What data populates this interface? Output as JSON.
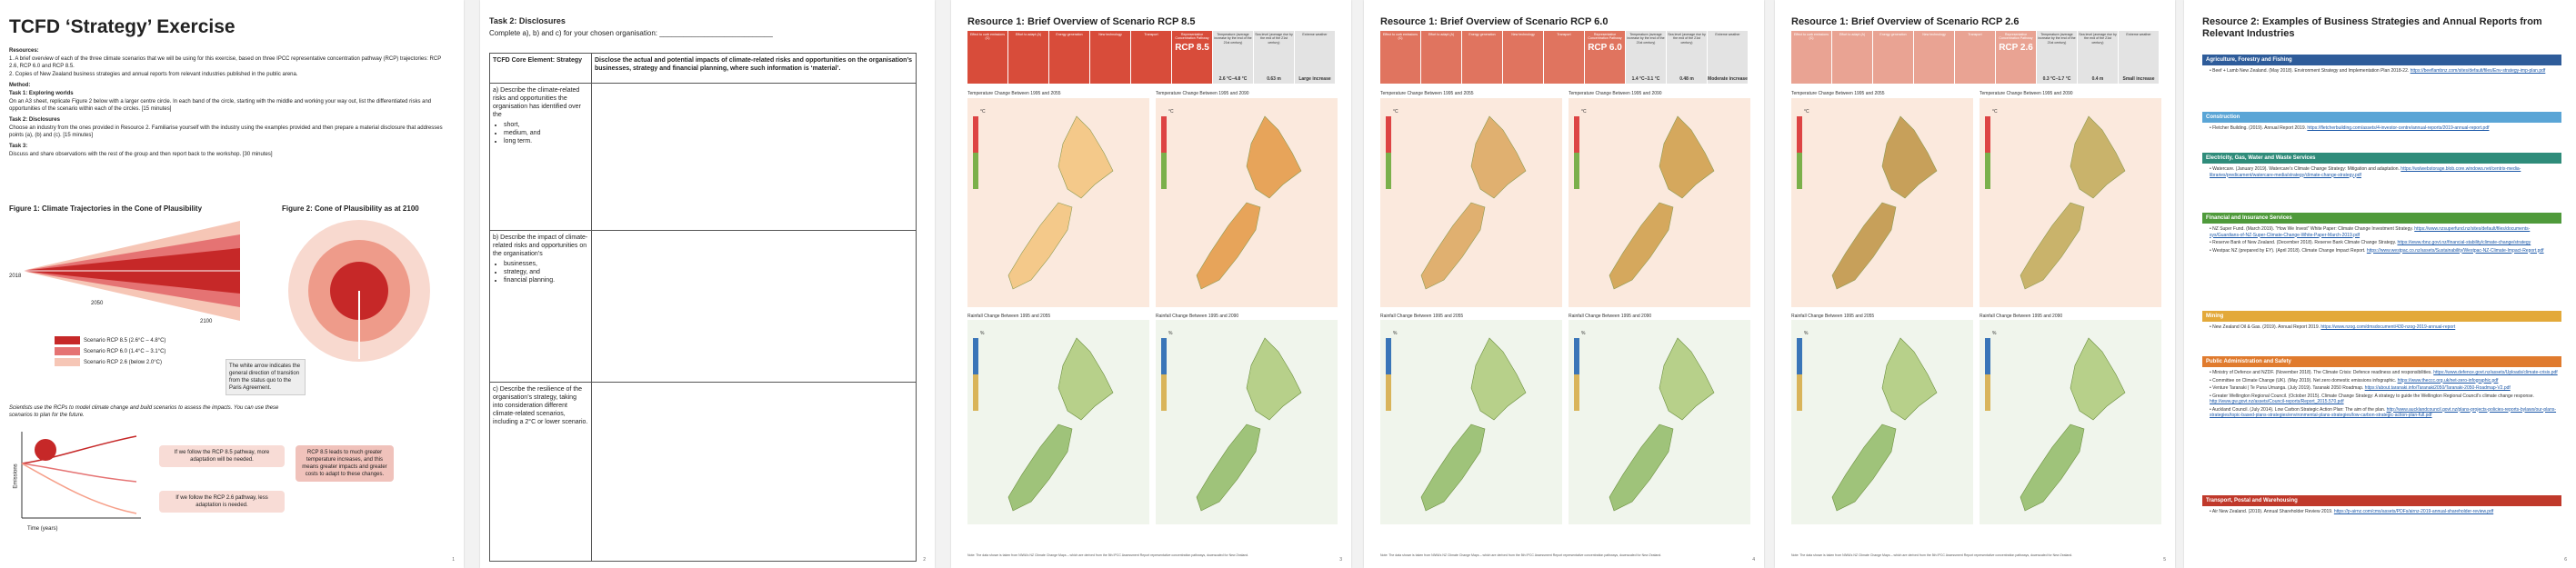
{
  "page1": {
    "title": "TCFD ‘Strategy’ Exercise",
    "resources_heading": "Resources:",
    "resources": [
      "1.  A brief overview of each of the three climate scenarios that we will be using for this exercise, based on three IPCC representative concentration pathway (RCP) trajectories: RCP 2.6, RCP 6.0 and RCP 8.5.",
      "2.  Copies of New Zealand business strategies and annual reports from relevant industries published in the public arena."
    ],
    "method_heading": "Method:",
    "task1_heading": "Task 1: Exploring worlds",
    "task1_text": "On an A3 sheet, replicate Figure 2 below with a larger centre circle. In each band of the circle, starting with the middle and working your way out, list the differentiated risks and opportunities of the scenario within each of the circles. [15 minutes]",
    "task2_heading": "Task 2: Disclosures",
    "task2_text": "Choose an industry from the ones provided in Resource 2. Familiarise yourself with the industry using the examples provided and then prepare a material disclosure that addresses points (a), (b) and (c). [15 minutes]",
    "task3_heading": "Task 3:",
    "task3_text": "Discuss and share observations with the rest of the group and then report back to the workshop. [30 minutes]",
    "fig1_title": "Figure 1: Climate Trajectories in the Cone of Plausibility",
    "fig2_title": "Figure 2: Cone of Plausibility as at 2100",
    "years": [
      "2018",
      "2050",
      "2100"
    ],
    "legend": [
      {
        "label": "Scenario   RCP 8.5   (2.6°C – 4.8°C)",
        "color": "#c62828"
      },
      {
        "label": "Scenario   RCP 6.0   (1.4°C – 3.1°C)",
        "color": "#e57373"
      },
      {
        "label": "Scenario   RCP 2.6   (below 2.0°C)",
        "color": "#f6c6b6"
      }
    ],
    "arrow_note": "The white arrow indicates the general direction of transition from the status quo to the Paris Agreement.",
    "bottom_note": "Scientists use the RCPs to model climate change and build scenarios to assess the impacts. You can use these scenarios to plan for the future.",
    "box_more": "If we follow the RCP 8.5 pathway, more adaptation will be needed.",
    "box_less": "If we follow the RCP 2.6 pathway, less adaptation is needed.",
    "box_right": "RCP 8.5 leads to much greater temperature increases, and this means greater impacts and greater costs to adapt to these changes.",
    "emissions_label": "Emissions",
    "years_axis": "Time (years)",
    "page_number": "1"
  },
  "page2": {
    "title": "Task 2: Disclosures",
    "subtitle": "Complete a), b) and c) for your chosen organisation: ____________________________",
    "col1": "TCFD Core Element: Strategy",
    "col2": "Disclose the actual and potential impacts of climate-related risks and opportunities on the organisation’s businesses, strategy and financial planning, where such information is ‘material’.",
    "row_a": "a) Describe the climate-related risks and opportunities the organisation has identified over the",
    "row_a_items": [
      "short,",
      "medium, and",
      "long term."
    ],
    "row_b": "b) Describe the impact of climate-related risks and opportunities on the organisation’s",
    "row_b_items": [
      "businesses,",
      "strategy, and",
      "financial planning."
    ],
    "row_c": "c) Describe the resilience of the organisation’s strategy, taking into consideration different climate-related scenarios, including a 2°C or lower scenario.",
    "page_number": "2"
  },
  "resources": [
    {
      "title": "Resource 1: Brief Overview of Scenario RCP 8.5",
      "rcp": "RCP 8.5",
      "accent": "#d84c3a",
      "temp": "2.6 °C–4.8 °C",
      "sea": "0.63 m",
      "weather": "Large increase",
      "temp_heading": "Temperature Change Between 1995 and 2055",
      "temp_heading2": "Temperature Change Between 1995 and 2090",
      "rain_heading": "Rainfall Change Between 1995 and 2055",
      "rain_heading2": "Rainfall Change Between 1995 and 2090",
      "page_number": "3"
    },
    {
      "title": "Resource 1: Brief Overview of Scenario RCP 6.0",
      "rcp": "RCP 6.0",
      "accent": "#e0745f",
      "temp": "1.4 °C–3.1 °C",
      "sea": "0.48 m",
      "weather": "Moderate increase",
      "temp_heading": "Temperature Change Between 1995 and 2055",
      "temp_heading2": "Temperature Change Between 1995 and 2090",
      "rain_heading": "Rainfall Change Between 1995 and 2055",
      "rain_heading2": "Rainfall Change Between 1995 and 2090",
      "page_number": "4"
    },
    {
      "title": "Resource 1: Brief Overview of Scenario RCP 2.6",
      "rcp": "RCP 2.6",
      "accent": "#e9a393",
      "temp": "0.3 °C–1.7 °C",
      "sea": "0.4 m",
      "weather": "Small increase",
      "temp_heading": "Temperature Change Between 1995 and 2055",
      "temp_heading2": "Temperature Change Between 1995 and 2090",
      "rain_heading": "Rainfall Change Between 1995 and 2055",
      "rain_heading2": "Rainfall Change Between 1995 and 2090",
      "page_number": "5"
    }
  ],
  "icon_columns": [
    "Effect to curb emissions (C)",
    "Effort to adapt (A)",
    "Energy generation",
    "New technology",
    "Transport",
    "Representative Concentration Pathway",
    "Temperature (average increase by the end of the 21st century)",
    "Sea level (average rise by the end of the 21st century)",
    "Extreme weather"
  ],
  "temp_unit": "°C",
  "rain_unit": "%",
  "temp_scale": [
    "4.0",
    "3.5",
    "3.0",
    "2.5",
    "2.0",
    "1.5",
    "1.0",
    "0.5"
  ],
  "rain_scale": [
    "20",
    "15",
    "10",
    "5",
    "0",
    "-5",
    "-10",
    "-15",
    "-20"
  ],
  "footnote": "Note: The data shown is taken from NIWA’s NZ Climate Change Maps – which are derived from the 5th IPCC Assessment Report representative concentration pathways, downscaled for New Zealand.",
  "page6": {
    "title": "Resource 2: Examples of Business Strategies and Annual Reports from Relevant Industries",
    "sections": [
      {
        "heading": "Agriculture, Forestry and Fishing",
        "color": "#2e5c9a",
        "items": [
          {
            "text": "Beef + Lamb New Zealand. (May 2018). Environment Strategy and Implementation Plan 2018-22.",
            "link": "https://beeflambnz.com/sites/default/files/Env-strategy-imp-plan.pdf"
          }
        ]
      },
      {
        "heading": "Construction",
        "color": "#5aa5d6",
        "items": [
          {
            "text": "Fletcher Building. (2019). Annual Report 2019.",
            "link": "https://fletcherbuilding.com/assets/4-investor-centre/annual-reports/2019-annual-report.pdf"
          }
        ]
      },
      {
        "heading": "Electricity, Gas, Water and Waste Services",
        "color": "#2f8c7a",
        "items": [
          {
            "text": "Watercare. (January 2019). Watercare’s Climate Change Strategy: Mitigation and adaptation.",
            "link": "https://wslwebstorage.blob.core.windows.net/centrix-media-libraries/predicament/watercare-media/strategy/climate-change-strategy.pdf"
          }
        ]
      },
      {
        "heading": "Financial and Insurance Services",
        "color": "#4f9a3b",
        "items": [
          {
            "text": "NZ Super Fund. (March 2019). “How We Invest” White Paper: Climate Change Investment Strategy.",
            "link": "https://www.nzsuperfund.nz/sites/default/files/documents-sys/Guardians-of-NZ-Super-Climate-Change-White-Paper-March-2019.pdf"
          },
          {
            "text": "Reserve Bank of New Zealand. (December 2018). Reserve Bank Climate Change Strategy.",
            "link": "https://www.rbnz.govt.nz/financial-stability/climate-change/strategy"
          },
          {
            "text": "Westpac NZ (prepared by EY). (April 2018). Climate Change Impact Report.",
            "link": "https://www.westpac.co.nz/assets/Sustainability/Westpac-NZ-Climate-Impact-Report.pdf"
          }
        ]
      },
      {
        "heading": "Mining",
        "color": "#e3a93a",
        "items": [
          {
            "text": "New Zealand Oil & Gas. (2019). Annual Report 2019.",
            "link": "https://www.nzog.com/dmsdocument/430-nzog-2019-annual-report"
          }
        ]
      },
      {
        "heading": "Public Administration and Safety",
        "color": "#e07b2e",
        "items": [
          {
            "text": "Ministry of Defence and NZDF. (November 2018). The Climate Crisis: Defence readiness and responsibilities.",
            "link": "https://www.defence.govt.nz/assets/Uploads/climate-crisis.pdf"
          },
          {
            "text": "Committee on Climate Change (UK). (May 2019). Net zero domestic emissions infographic.",
            "link": "https://www.theccc.org.uk/net-zero-infographic.pdf"
          },
          {
            "text": "Venture Taranaki | Te Puna Umanga. (July 2019). Taranaki 2050 Roadmap.",
            "link": "https://about.taranaki.info/Taranaki2050/Taranaki-2050-Roadmap-V2.pdf"
          },
          {
            "text": "Greater Wellington Regional Council. (October 2015). Climate Change Strategy: A strategy to guide the Wellington Regional Council’s climate change response.",
            "link": "http://www.gw.govt.nz/assets/Council-reports/Report_2015.570.pdf"
          },
          {
            "text": "Auckland Council. (July 2014). Low Carbon Strategic Action Plan: The aim of the plan.",
            "link": "http://www.aucklandcouncil.govt.nz/plans-projects-policies-reports-bylaws/our-plans-strategies/topic-based-plans-strategies/environmental-plans-strategies/low-carbon-strategic-action-plan-full.pdf"
          }
        ]
      },
      {
        "heading": "Transport, Postal and Warehousing",
        "color": "#c0392b",
        "items": [
          {
            "text": "Air New Zealand. (2019). Annual Shareholder Review 2019.",
            "link": "https://p-airnz.com/cms/assets/PDFs/airnz-2019-annual-shareholder-review.pdf"
          }
        ]
      }
    ],
    "page_number": "6"
  }
}
